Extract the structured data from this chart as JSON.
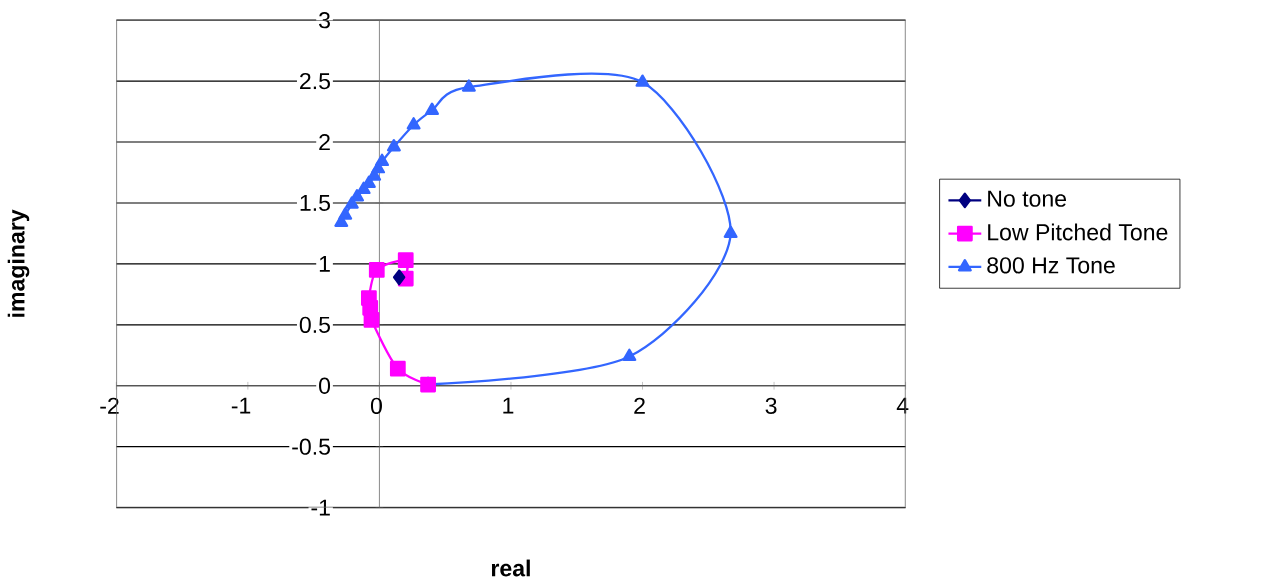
{
  "chart_data": {
    "type": "line",
    "xlabel": "real",
    "ylabel": "imaginary",
    "xlim": [
      -2,
      4
    ],
    "ylim": [
      -1,
      3
    ],
    "xticks": [
      -2,
      -1,
      0,
      1,
      2,
      3,
      4
    ],
    "yticks": [
      -1,
      -0.5,
      0,
      0.5,
      1,
      1.5,
      2,
      2.5,
      3
    ],
    "grid": "y",
    "legend": "right",
    "series": [
      {
        "name": "No tone",
        "color": "#000080",
        "marker": "diamond",
        "x": [
          0.15
        ],
        "values": [
          0.89
        ]
      },
      {
        "name": "Low Pitched Tone",
        "color": "#ff00ff",
        "marker": "square",
        "x": [
          0.2,
          0.2,
          -0.02,
          -0.08,
          -0.07,
          -0.06,
          0.14,
          0.37
        ],
        "values": [
          0.88,
          1.03,
          0.95,
          0.72,
          0.64,
          0.54,
          0.14,
          0.01
        ]
      },
      {
        "name": "800 Hz Tone",
        "color": "#3366ff",
        "marker": "triangle",
        "x": [
          0.37,
          1.9,
          2.67,
          2.0,
          0.68,
          0.4,
          0.26,
          0.11,
          0.02,
          -0.01,
          -0.04,
          -0.08,
          -0.12,
          -0.17,
          -0.21,
          -0.26,
          -0.29
        ],
        "values": [
          0.01,
          0.24,
          1.25,
          2.49,
          2.45,
          2.26,
          2.14,
          1.96,
          1.84,
          1.78,
          1.72,
          1.66,
          1.61,
          1.55,
          1.49,
          1.4,
          1.34
        ]
      }
    ]
  }
}
